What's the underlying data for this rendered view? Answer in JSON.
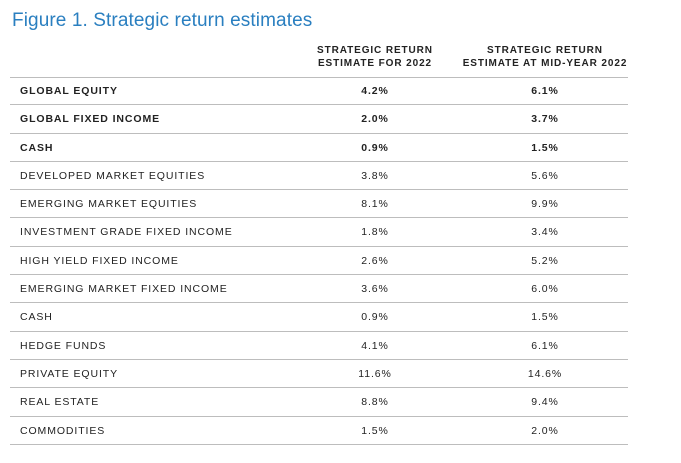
{
  "title": "Figure 1. Strategic return estimates",
  "columns": {
    "col1_line1": "STRATEGIC RETURN",
    "col1_line2": "ESTIMATE FOR 2022",
    "col2_line1": "STRATEGIC RETURN",
    "col2_line2": "ESTIMATE AT MID-YEAR 2022"
  },
  "rows": [
    {
      "label": "GLOBAL EQUITY",
      "v2022": "4.2%",
      "vmid": "6.1%",
      "bold": true
    },
    {
      "label": "GLOBAL FIXED INCOME",
      "v2022": "2.0%",
      "vmid": "3.7%",
      "bold": true
    },
    {
      "label": "CASH",
      "v2022": "0.9%",
      "vmid": "1.5%",
      "bold": true
    },
    {
      "label": "DEVELOPED MARKET EQUITIES",
      "v2022": "3.8%",
      "vmid": "5.6%",
      "bold": false
    },
    {
      "label": "EMERGING MARKET EQUITIES",
      "v2022": "8.1%",
      "vmid": "9.9%",
      "bold": false
    },
    {
      "label": "INVESTMENT GRADE FIXED INCOME",
      "v2022": "1.8%",
      "vmid": "3.4%",
      "bold": false
    },
    {
      "label": "HIGH YIELD FIXED INCOME",
      "v2022": "2.6%",
      "vmid": "5.2%",
      "bold": false
    },
    {
      "label": "EMERGING MARKET FIXED INCOME",
      "v2022": "3.6%",
      "vmid": "6.0%",
      "bold": false
    },
    {
      "label": "CASH",
      "v2022": "0.9%",
      "vmid": "1.5%",
      "bold": false
    },
    {
      "label": "HEDGE FUNDS",
      "v2022": "4.1%",
      "vmid": "6.1%",
      "bold": false
    },
    {
      "label": "PRIVATE EQUITY",
      "v2022": "11.6%",
      "vmid": "14.6%",
      "bold": false
    },
    {
      "label": "REAL ESTATE",
      "v2022": "8.8%",
      "vmid": "9.4%",
      "bold": false
    },
    {
      "label": "COMMODITIES",
      "v2022": "1.5%",
      "vmid": "2.0%",
      "bold": false
    }
  ]
}
